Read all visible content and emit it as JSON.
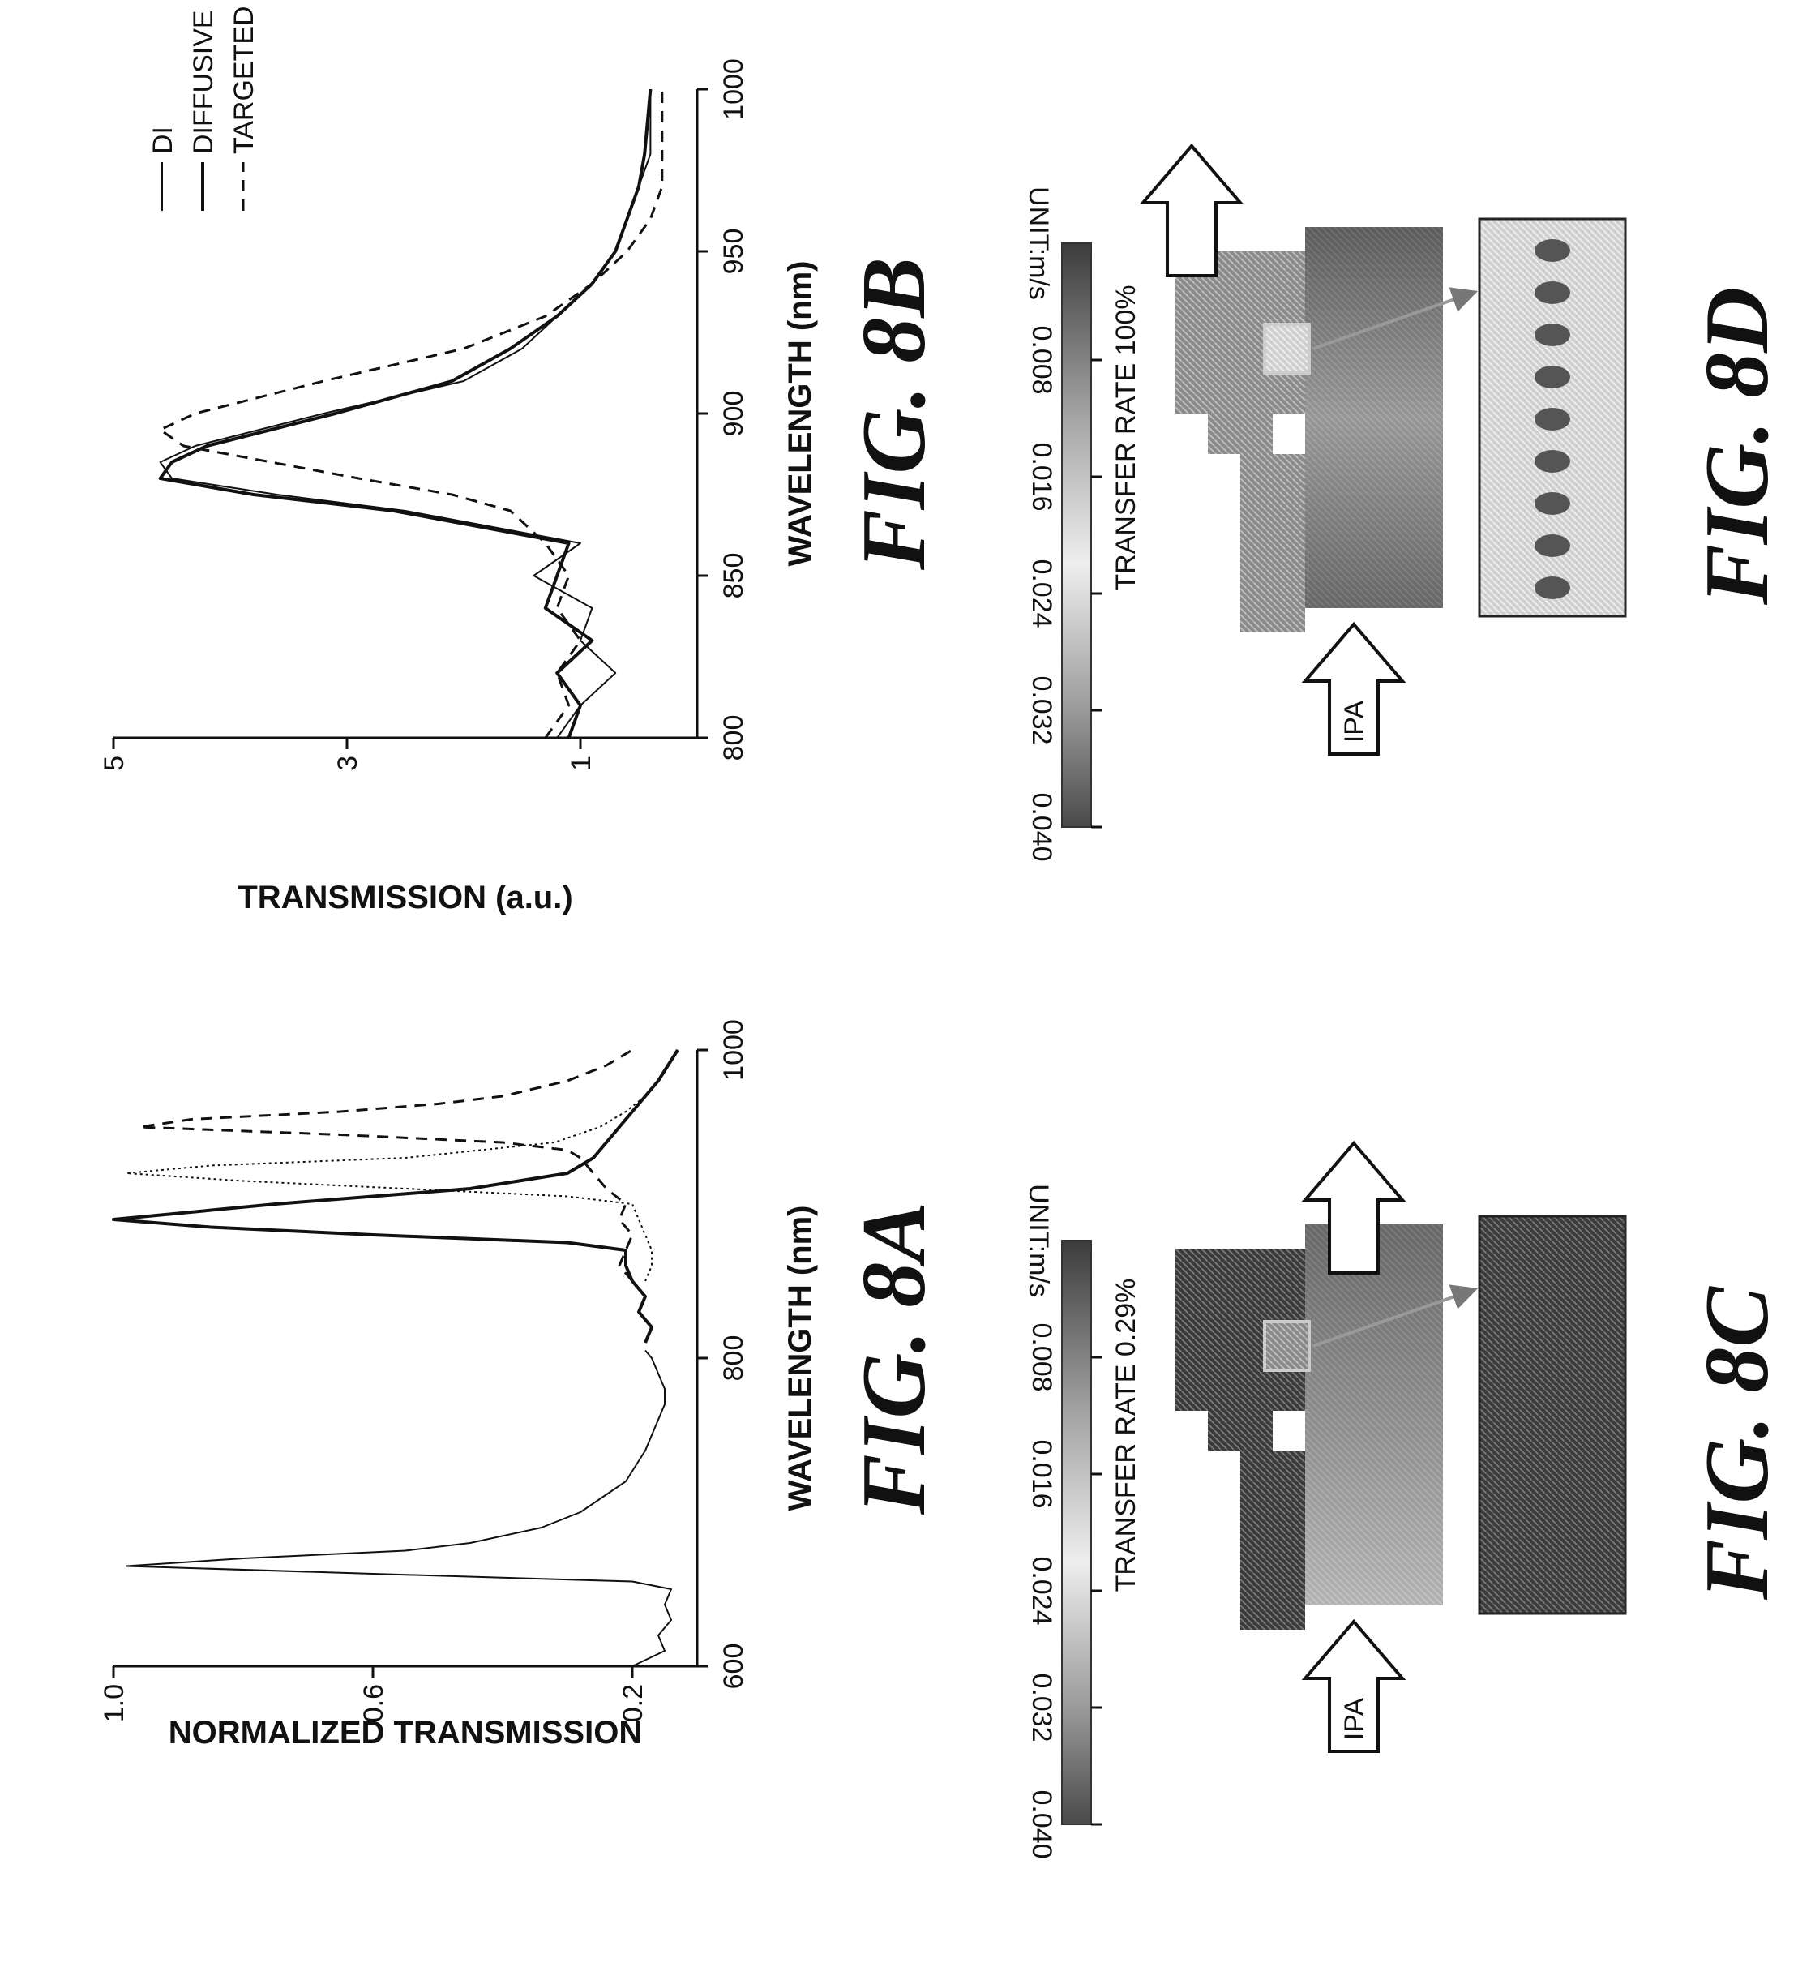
{
  "chart_data": [
    {
      "id": "fig-8a",
      "type": "line",
      "title": "FIG. 8A",
      "xlabel": "WAVELENGTH (nm)",
      "ylabel": "NORMALIZED TRANSMISSION",
      "xlim": [
        600,
        1000
      ],
      "ylim": [
        0.1,
        1.0
      ],
      "xticks": [
        600,
        800,
        1000
      ],
      "xtick_labels": [
        "600",
        "800",
        "1000"
      ],
      "yticks": [
        0.2,
        0.6,
        1.0
      ],
      "ytick_labels": [
        "0.2",
        "0.6",
        "1.0"
      ],
      "series": [
        {
          "style": "thin",
          "x": [
            600,
            610,
            620,
            630,
            640,
            650,
            655,
            660,
            665,
            670,
            675,
            680,
            690,
            700,
            720,
            740,
            760,
            770,
            780,
            790,
            800,
            805
          ],
          "y": [
            0.2,
            0.15,
            0.16,
            0.14,
            0.15,
            0.14,
            0.2,
            0.6,
            0.98,
            0.8,
            0.55,
            0.45,
            0.34,
            0.28,
            0.21,
            0.18,
            0.16,
            0.15,
            0.15,
            0.16,
            0.17,
            0.18
          ]
        },
        {
          "style": "medium",
          "x": [
            810,
            820,
            830,
            840,
            850,
            860,
            870,
            875,
            880,
            885,
            890,
            900,
            910,
            920,
            930,
            940,
            950,
            960,
            980,
            1000
          ],
          "y": [
            0.18,
            0.17,
            0.19,
            0.18,
            0.2,
            0.21,
            0.21,
            0.3,
            0.6,
            0.85,
            1.0,
            0.75,
            0.45,
            0.3,
            0.26,
            0.24,
            0.22,
            0.2,
            0.16,
            0.13
          ]
        },
        {
          "style": "dotted",
          "x": [
            850,
            860,
            870,
            880,
            890,
            900,
            905,
            910,
            915,
            920,
            925,
            930,
            940,
            950,
            960,
            970,
            980
          ],
          "y": [
            0.18,
            0.17,
            0.17,
            0.18,
            0.19,
            0.2,
            0.3,
            0.55,
            0.8,
            0.98,
            0.85,
            0.55,
            0.32,
            0.25,
            0.21,
            0.18,
            0.16
          ]
        },
        {
          "style": "dashed",
          "x": [
            850,
            860,
            870,
            880,
            890,
            900,
            910,
            920,
            930,
            935,
            940,
            945,
            950,
            955,
            960,
            965,
            970,
            980,
            990,
            1000
          ],
          "y": [
            0.2,
            0.22,
            0.21,
            0.2,
            0.22,
            0.21,
            0.24,
            0.26,
            0.28,
            0.3,
            0.4,
            0.65,
            0.96,
            0.88,
            0.65,
            0.5,
            0.4,
            0.3,
            0.24,
            0.2
          ]
        }
      ]
    },
    {
      "id": "fig-8b",
      "type": "line",
      "title": "FIG. 8B",
      "xlabel": "WAVELENGTH (nm)",
      "ylabel": "TRANSMISSION (a.u.)",
      "xlim": [
        800,
        1000
      ],
      "ylim": [
        0,
        5
      ],
      "xticks": [
        800,
        850,
        900,
        950,
        1000
      ],
      "xtick_labels": [
        "800",
        "850",
        "900",
        "950",
        "1000"
      ],
      "yticks": [
        1,
        3,
        5
      ],
      "ytick_labels": [
        "1",
        "3",
        "5"
      ],
      "legend": "top-right",
      "series": [
        {
          "name": "DI",
          "style": "thin",
          "x": [
            800,
            810,
            820,
            830,
            840,
            850,
            860,
            870,
            875,
            880,
            885,
            890,
            900,
            910,
            920,
            930,
            940,
            950,
            960,
            970,
            980,
            1000
          ],
          "y": [
            1.2,
            1.0,
            0.7,
            1.0,
            0.9,
            1.4,
            1.0,
            2.5,
            3.6,
            4.5,
            4.6,
            4.3,
            3.2,
            2.0,
            1.5,
            1.2,
            0.9,
            0.7,
            0.6,
            0.5,
            0.4,
            0.4
          ]
        },
        {
          "name": "DIFFUSIVE",
          "style": "solid",
          "x": [
            800,
            810,
            820,
            830,
            840,
            850,
            860,
            870,
            875,
            880,
            885,
            890,
            900,
            910,
            920,
            930,
            940,
            950,
            960,
            970,
            980,
            1000
          ],
          "y": [
            1.1,
            1.0,
            1.2,
            0.9,
            1.3,
            1.2,
            1.1,
            2.6,
            3.8,
            4.6,
            4.5,
            4.2,
            3.1,
            2.1,
            1.6,
            1.2,
            0.9,
            0.7,
            0.6,
            0.5,
            0.45,
            0.4
          ]
        },
        {
          "name": "TARGETED",
          "style": "dashed",
          "x": [
            800,
            810,
            820,
            830,
            840,
            850,
            860,
            870,
            875,
            880,
            890,
            895,
            900,
            910,
            920,
            930,
            940,
            950,
            960,
            970,
            980,
            1000
          ],
          "y": [
            1.3,
            1.1,
            1.2,
            1.0,
            1.2,
            1.1,
            1.3,
            1.6,
            2.1,
            2.9,
            4.4,
            4.6,
            4.3,
            3.2,
            2.0,
            1.3,
            0.9,
            0.6,
            0.4,
            0.3,
            0.3,
            0.3
          ]
        }
      ]
    },
    {
      "id": "fig-8c",
      "type": "heatmap",
      "title": "FIG. 8C",
      "annotation": "TRANSFER RATE 0.29%",
      "inlet_label": "IPA",
      "colorbar_ticks": [
        "0.040",
        "0.032",
        "0.024",
        "0.016",
        "0.008"
      ],
      "colorbar_unit": "UNIT:m/s"
    },
    {
      "id": "fig-8d",
      "type": "heatmap",
      "title": "FIG. 8D",
      "annotation": "TRANSFER RATE 100%",
      "inlet_label": "IPA",
      "colorbar_ticks": [
        "0.040",
        "0.032",
        "0.024",
        "0.016",
        "0.008"
      ],
      "colorbar_unit": "UNIT:m/s"
    }
  ]
}
